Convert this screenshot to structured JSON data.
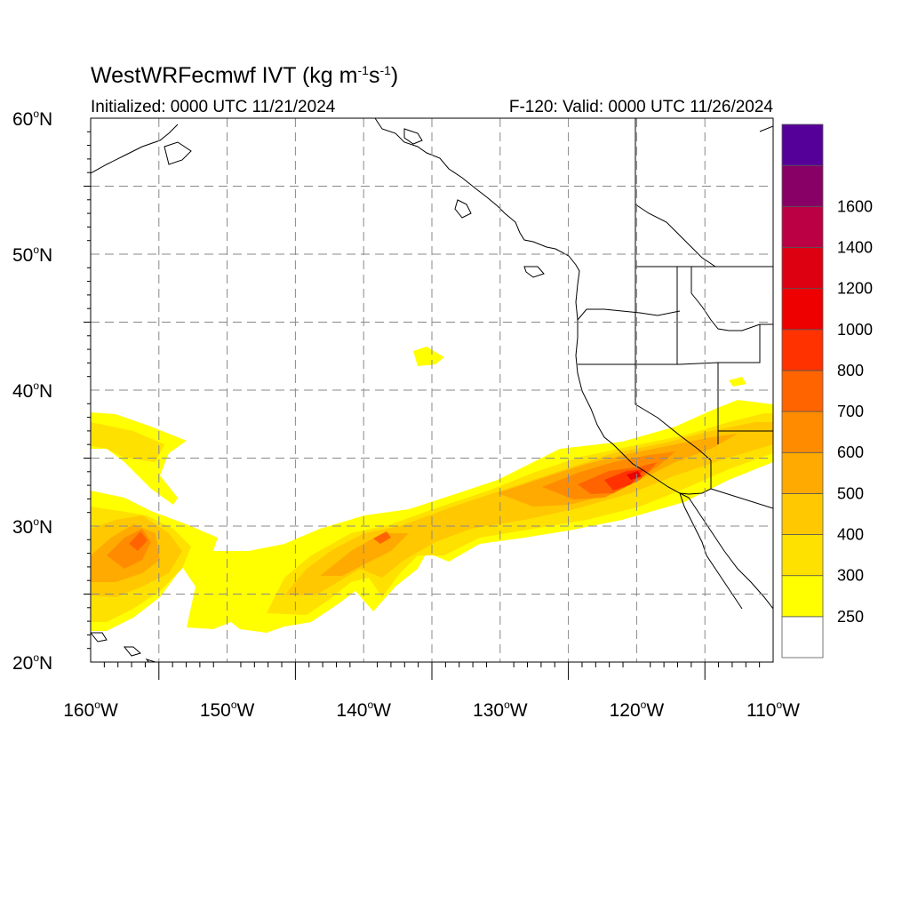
{
  "title": {
    "main": "WestWRFecmwf IVT (kg m",
    "exp1": "-1",
    "mid": "s",
    "exp2": "-1",
    "close": ")"
  },
  "subtitle": {
    "initialized": "Initialized: 0000 UTC 11/21/2024",
    "valid": "F-120: Valid: 0000 UTC 11/26/2024"
  },
  "map": {
    "lon_range": [
      -160,
      -110
    ],
    "lat_range": [
      20,
      60
    ],
    "lat_ticks": [
      {
        "lat": 60,
        "num": "60",
        "deg": "o",
        "hem": "N"
      },
      {
        "lat": 50,
        "num": "50",
        "deg": "o",
        "hem": "N"
      },
      {
        "lat": 40,
        "num": "40",
        "deg": "o",
        "hem": "N"
      },
      {
        "lat": 30,
        "num": "30",
        "deg": "o",
        "hem": "N"
      },
      {
        "lat": 20,
        "num": "20",
        "deg": "o",
        "hem": "N"
      }
    ],
    "lon_ticks": [
      {
        "lon": -160,
        "num": "160",
        "deg": "o",
        "hem": "W"
      },
      {
        "lon": -150,
        "num": "150",
        "deg": "o",
        "hem": "W"
      },
      {
        "lon": -140,
        "num": "140",
        "deg": "o",
        "hem": "W"
      },
      {
        "lon": -130,
        "num": "130",
        "deg": "o",
        "hem": "W"
      },
      {
        "lon": -120,
        "num": "120",
        "deg": "o",
        "hem": "W"
      },
      {
        "lon": -110,
        "num": "110",
        "deg": "o",
        "hem": "W"
      }
    ],
    "grid_style": "dashed gray every 5 degrees"
  },
  "colorbar": {
    "colors": [
      "#ffffff",
      "#ffff00",
      "#ffe100",
      "#ffc800",
      "#ffaa00",
      "#ff8c00",
      "#ff6400",
      "#ff3200",
      "#ee0000",
      "#dd0011",
      "#bb0044",
      "#880066",
      "#550099"
    ],
    "labels": [
      "250",
      "300",
      "400",
      "500",
      "600",
      "700",
      "800",
      "1000",
      "1200",
      "1400",
      "1600"
    ]
  },
  "ivt_colors": {
    "l250": "#ffff00",
    "l300": "#ffe100",
    "l400": "#ffc800",
    "l500": "#ffaa00",
    "l600": "#ff8c00",
    "l700": "#ff6400",
    "l800": "#ff3200",
    "l1000": "#ee0000"
  }
}
